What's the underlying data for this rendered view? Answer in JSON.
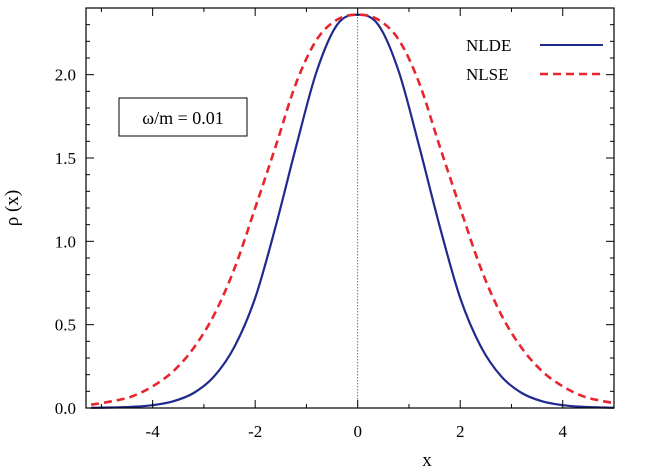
{
  "chart_data": {
    "type": "line",
    "title": "",
    "xlabel": "x",
    "ylabel": "ρ (x)",
    "xlim": [
      -5.3,
      5.0
    ],
    "ylim": [
      0.0,
      2.4
    ],
    "x_ticks": [
      -4,
      -2,
      0,
      2,
      4
    ],
    "x_tick_labels": [
      "-4",
      "-2",
      "0",
      "2",
      "4"
    ],
    "y_ticks": [
      0.0,
      0.5,
      1.0,
      1.5,
      2.0
    ],
    "y_tick_labels": [
      "0.0",
      "0.5",
      "1.0",
      "1.5",
      "2.0"
    ],
    "grid": false,
    "legend_position": "top-right",
    "annotation": "ω/m = 0.01",
    "x": [
      -5.2,
      -4.8,
      -4.4,
      -4.0,
      -3.6,
      -3.2,
      -2.8,
      -2.4,
      -2.0,
      -1.6,
      -1.2,
      -0.8,
      -0.4,
      0.0,
      0.4,
      0.8,
      1.2,
      1.6,
      2.0,
      2.4,
      2.8,
      3.2,
      3.6,
      4.0,
      4.4,
      4.8,
      5.0
    ],
    "series": [
      {
        "name": "NLDE",
        "color": "#1f2a8c",
        "dash": "solid",
        "values": [
          0.001,
          0.003,
          0.007,
          0.017,
          0.04,
          0.09,
          0.19,
          0.37,
          0.66,
          1.09,
          1.57,
          2.02,
          2.3,
          2.36,
          2.3,
          2.02,
          1.57,
          1.09,
          0.66,
          0.37,
          0.19,
          0.09,
          0.04,
          0.017,
          0.007,
          0.003,
          0.001
        ]
      },
      {
        "name": "NLSE",
        "color": "#e8252e",
        "dash": "dashed",
        "values": [
          0.02,
          0.04,
          0.07,
          0.13,
          0.22,
          0.36,
          0.56,
          0.84,
          1.2,
          1.57,
          1.95,
          2.21,
          2.33,
          2.36,
          2.33,
          2.21,
          1.95,
          1.57,
          1.2,
          0.84,
          0.56,
          0.36,
          0.22,
          0.13,
          0.07,
          0.04,
          0.03
        ]
      }
    ]
  }
}
